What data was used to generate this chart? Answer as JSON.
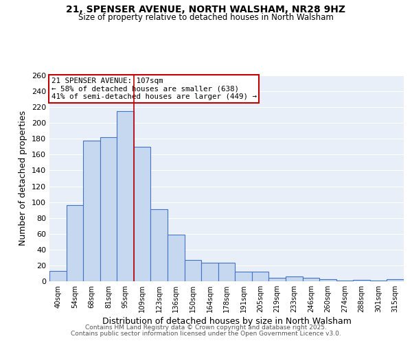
{
  "title_line1": "21, SPENSER AVENUE, NORTH WALSHAM, NR28 9HZ",
  "title_line2": "Size of property relative to detached houses in North Walsham",
  "xlabel": "Distribution of detached houses by size in North Walsham",
  "ylabel": "Number of detached properties",
  "categories": [
    "40sqm",
    "54sqm",
    "68sqm",
    "81sqm",
    "95sqm",
    "109sqm",
    "123sqm",
    "136sqm",
    "150sqm",
    "164sqm",
    "178sqm",
    "191sqm",
    "205sqm",
    "219sqm",
    "233sqm",
    "246sqm",
    "260sqm",
    "274sqm",
    "288sqm",
    "301sqm",
    "315sqm"
  ],
  "values": [
    13,
    96,
    178,
    182,
    215,
    170,
    91,
    59,
    27,
    23,
    23,
    12,
    12,
    4,
    6,
    4,
    3,
    1,
    2,
    1,
    3
  ],
  "bar_color": "#c5d8f0",
  "bar_edge_color": "#4472c4",
  "vline_x": 4.5,
  "vline_color": "#c00000",
  "annotation_text": "21 SPENSER AVENUE: 107sqm\n← 58% of detached houses are smaller (638)\n41% of semi-detached houses are larger (449) →",
  "annotation_box_color": "white",
  "annotation_box_edge_color": "#c00000",
  "ylim": [
    0,
    260
  ],
  "yticks": [
    0,
    20,
    40,
    60,
    80,
    100,
    120,
    140,
    160,
    180,
    200,
    220,
    240,
    260
  ],
  "background_color": "#e8eff8",
  "grid_color": "white",
  "footer_line1": "Contains HM Land Registry data © Crown copyright and database right 2025.",
  "footer_line2": "Contains public sector information licensed under the Open Government Licence v3.0."
}
